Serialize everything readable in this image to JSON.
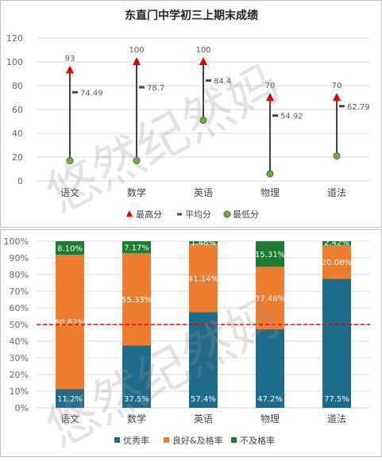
{
  "watermark": "悠然纪然妈",
  "colors": {
    "max": "#e00000",
    "avg": "#1f4e79",
    "min": "#70ad47",
    "minStroke": "#3a6b22",
    "excellent": "#1f6b8c",
    "good": "#ed7d31",
    "fail": "#1e7b30",
    "refline": "#e00000",
    "grid": "#d9d9d9"
  },
  "chart_data": [
    {
      "type": "scatter",
      "title": "东直门中学初三上期末成绩",
      "categories": [
        "语文",
        "数学",
        "英语",
        "物理",
        "道法"
      ],
      "ylim": [
        0,
        120
      ],
      "yticks": [
        0,
        20,
        40,
        60,
        80,
        100,
        120
      ],
      "grid": true,
      "legend": "bottom",
      "series": [
        {
          "name": "最高分",
          "values": [
            93,
            100,
            100,
            70,
            70
          ],
          "labels": [
            "93",
            "100",
            "100",
            "70",
            "70"
          ]
        },
        {
          "name": "平均分",
          "values": [
            74.49,
            78.7,
            84.4,
            54.92,
            62.79
          ],
          "labels": [
            "74.49",
            "78.7",
            "84.4",
            "54.92",
            "62.79"
          ]
        },
        {
          "name": "最低分",
          "values": [
            17,
            17,
            51,
            6,
            21
          ]
        }
      ]
    },
    {
      "type": "bar",
      "stacked": true,
      "categories": [
        "语文",
        "数学",
        "英语",
        "物理",
        "道法"
      ],
      "ylim": [
        0,
        100
      ],
      "yticks": [
        "0%",
        "10%",
        "20%",
        "30%",
        "40%",
        "50%",
        "60%",
        "70%",
        "80%",
        "90%",
        "100%"
      ],
      "reference_line": 50,
      "grid": true,
      "legend": "bottom",
      "series": [
        {
          "name": "优秀率",
          "values": [
            11.2,
            37.5,
            57.4,
            47.2,
            77.5
          ],
          "labels": [
            "11.2%",
            "37.5%",
            "57.4%",
            "47.2%",
            "77.5%"
          ]
        },
        {
          "name": "良好&及格率",
          "values": [
            80.67,
            55.33,
            41.14,
            37.46,
            20.08
          ],
          "labels": [
            "80.67%",
            "55.33%",
            "41.14%",
            "37.46%",
            "20.08%"
          ]
        },
        {
          "name": "不及格率",
          "values": [
            8.1,
            7.17,
            1.46,
            15.31,
            2.42
          ],
          "labels": [
            "8.10%",
            "7.17%",
            "1.46%",
            "15.31%",
            "2.42%"
          ]
        }
      ]
    }
  ]
}
